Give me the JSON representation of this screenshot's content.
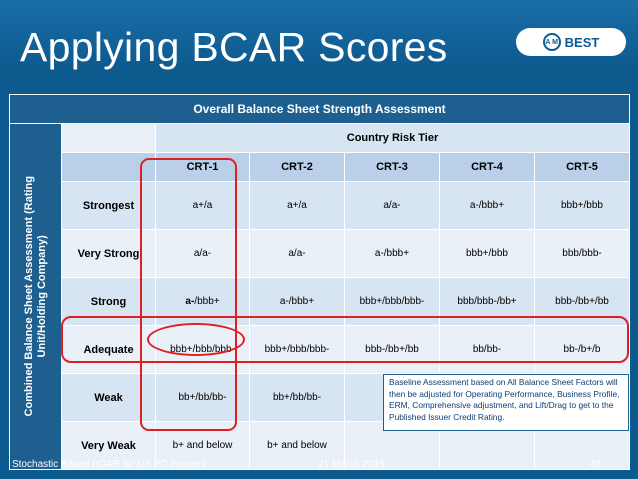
{
  "slide": {
    "title": "Applying BCAR Scores",
    "logo": {
      "seal_text": "A M",
      "brand": "BEST"
    }
  },
  "table": {
    "overall_header": "Overall Balance Sheet Strength Assessment",
    "side_label_line1": "Combined Balance Sheet Assessment (Rating",
    "side_label_line2": "Unit/Holding Company)",
    "country_header": "Country Risk Tier",
    "columns": [
      "CRT-1",
      "CRT-2",
      "CRT-3",
      "CRT-4",
      "CRT-5"
    ],
    "rows": [
      {
        "label": "Strongest",
        "cells": [
          "a+/a",
          "a+/a",
          "a/a-",
          "a-/bbb+",
          "bbb+/bbb"
        ]
      },
      {
        "label": "Very Strong",
        "cells": [
          "a/a-",
          "a/a-",
          "a-/bbb+",
          "bbb+/bbb",
          "bbb/bbb-"
        ]
      },
      {
        "label": "Strong",
        "cells_first_emph": "a-",
        "cells_first_rest": "/bbb+",
        "cells": [
          "a-/bbb+",
          "a-/bbb+",
          "bbb+/bbb/bbb-",
          "bbb/bbb-/bb+",
          "bbb-/bb+/bb"
        ]
      },
      {
        "label": "Adequate",
        "cells": [
          "bbb+/bbb/bbb-",
          "bbb+/bbb/bbb-",
          "bbb-/bb+/bb",
          "bb/bb-",
          "bb-/b+/b"
        ]
      },
      {
        "label": "Weak",
        "cells": [
          "bb+/bb/bb-",
          "bb+/bb/bb-"
        ]
      },
      {
        "label": "Very Weak",
        "cells": [
          "b+ and below",
          "b+ and below"
        ]
      }
    ]
  },
  "callout": "Baseline Assessment based on All Balance Sheet Factors will then be adjusted for Operating Performance, Business Profile, ERM, Comprehensive adjustment, and Lift/Drag to get to the Published Issuer Credit Rating.",
  "footer": {
    "left": "Stochastic Based BCAR for US PC Insurers",
    "date": "21 March 2016",
    "page": "48"
  },
  "colors": {
    "background": "#0d5a8f",
    "header": "#1d5f8f",
    "band_light": "#eaf0f8",
    "band_mid": "#d7e4f1",
    "crt_header": "#b9d0e8",
    "highlight": "#e02020"
  }
}
